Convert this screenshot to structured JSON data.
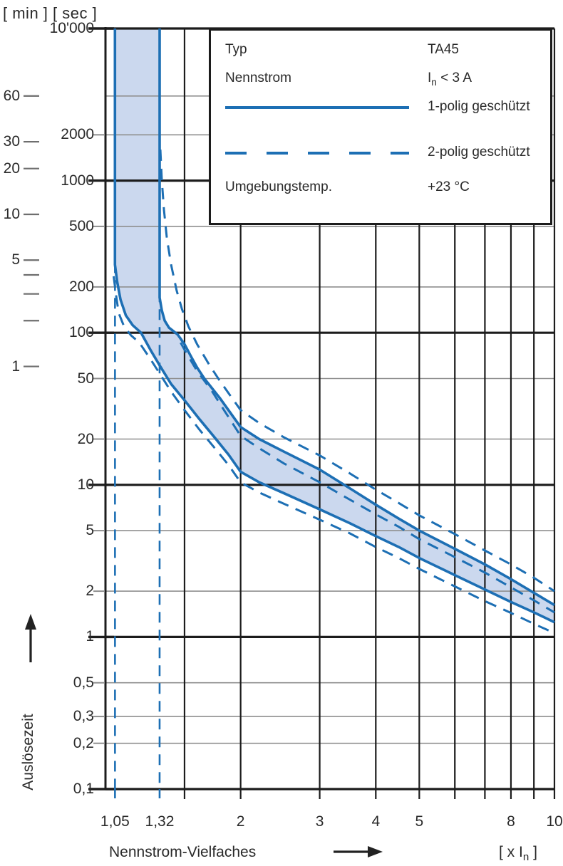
{
  "colors": {
    "curve_blue": "#1d6fb4",
    "band_fill": "#cbd8ee",
    "grid_gray": "#8f8f8f",
    "grid_black": "#1c1c1c",
    "text": "#262626"
  },
  "axes": {
    "y_unit_label": "[ min ] [ sec ]",
    "y_axis_caption": "Auslösezeit",
    "x_axis_caption": "Nennstrom-Vielfaches",
    "x_unit_prefix": "[ x I",
    "x_unit_sub": "n",
    "x_unit_suffix": " ]",
    "sec_ticks": [
      {
        "v": 10000,
        "label": "10'000",
        "major": true
      },
      {
        "v": 2000,
        "label": "2000",
        "major": false
      },
      {
        "v": 1000,
        "label": "1000",
        "major": true
      },
      {
        "v": 500,
        "label": "500",
        "major": false
      },
      {
        "v": 200,
        "label": "200",
        "major": false
      },
      {
        "v": 100,
        "label": "100",
        "major": true
      },
      {
        "v": 50,
        "label": "50",
        "major": false
      },
      {
        "v": 20,
        "label": "20",
        "major": false
      },
      {
        "v": 10,
        "label": "10",
        "major": true
      },
      {
        "v": 5,
        "label": "5",
        "major": false
      },
      {
        "v": 2,
        "label": "2",
        "major": false
      },
      {
        "v": 1,
        "label": "1",
        "major": true
      },
      {
        "v": 0.5,
        "label": "0,5",
        "major": false
      },
      {
        "v": 0.3,
        "label": "0,3",
        "major": false
      },
      {
        "v": 0.2,
        "label": "0,2",
        "major": false
      },
      {
        "v": 0.1,
        "label": "0,1",
        "major": true
      }
    ],
    "min_ticks": [
      {
        "v": 60,
        "label": "60"
      },
      {
        "v": 30,
        "label": "30"
      },
      {
        "v": 20,
        "label": "20"
      },
      {
        "v": 10,
        "label": "10"
      },
      {
        "v": 5,
        "label": "5"
      },
      {
        "v": 4,
        "label": ""
      },
      {
        "v": 3,
        "label": ""
      },
      {
        "v": 2,
        "label": ""
      },
      {
        "v": 1,
        "label": "1"
      }
    ],
    "x_ticks": [
      {
        "v": 1.05,
        "label": "1,05",
        "blue": true
      },
      {
        "v": 1.32,
        "label": "1,32",
        "blue": true
      },
      {
        "v": 1.5,
        "label": "",
        "blue": false
      },
      {
        "v": 2,
        "label": "2",
        "blue": false
      },
      {
        "v": 3,
        "label": "3",
        "blue": false
      },
      {
        "v": 4,
        "label": "4",
        "blue": false
      },
      {
        "v": 5,
        "label": "5",
        "blue": false
      },
      {
        "v": 6,
        "label": "",
        "blue": false
      },
      {
        "v": 7,
        "label": "",
        "blue": false
      },
      {
        "v": 8,
        "label": "8",
        "blue": false
      },
      {
        "v": 9,
        "label": "",
        "blue": false
      },
      {
        "v": 10,
        "label": "10",
        "blue": false
      }
    ]
  },
  "legend": {
    "typ_label": "Typ",
    "typ_value": "TA45",
    "nennstrom_label": "Nennstrom",
    "nennstrom_value_prefix": "I",
    "nennstrom_value_sub": "n",
    "nennstrom_value_suffix": " < 3 A",
    "solid_label": "1-polig geschützt",
    "dashed_label": "2-polig geschützt",
    "temp_label": "Umgebungstemp.",
    "temp_value": "+23 °C"
  },
  "chart_data": {
    "type": "line",
    "title": "",
    "xlabel": "Nennstrom-Vielfaches [ x In ]",
    "ylabel": "Auslösezeit [ min ] [ sec ]",
    "x_scale": "log",
    "y_scale": "log",
    "xlim": [
      1,
      10
    ],
    "ylim_sec": [
      0.1,
      10000
    ],
    "grid": true,
    "x_gridlines": [
      1.5,
      2,
      3,
      4,
      5,
      6,
      7,
      8,
      9,
      10
    ],
    "y_gridlines_major_sec": [
      10000,
      1000,
      100,
      10,
      1,
      0.1
    ],
    "y_gridlines_minor_sec": [
      3600,
      2000,
      500,
      200,
      50,
      20,
      5,
      2,
      0.5,
      0.3,
      0.2
    ],
    "asymptotes": [
      {
        "x": 1.05,
        "style": "dashed",
        "from_t": 290,
        "to_t": 0.1
      },
      {
        "x": 1.32,
        "style": "dashed",
        "from_t": 320,
        "to_t": 0.1
      }
    ],
    "band_fill_between": [
      "1-polig geschützt (min)",
      "1-polig geschützt (max)"
    ],
    "series": [
      {
        "name": "1-polig geschützt (min)",
        "style": "solid",
        "points": [
          [
            1.05,
            10000
          ],
          [
            1.05,
            280
          ],
          [
            1.062,
            215
          ],
          [
            1.08,
            165
          ],
          [
            1.11,
            130
          ],
          [
            1.15,
            112
          ],
          [
            1.2,
            100
          ],
          [
            1.26,
            77
          ],
          [
            1.32,
            61
          ],
          [
            1.4,
            46
          ],
          [
            1.5,
            36
          ],
          [
            1.62,
            27
          ],
          [
            1.75,
            20.5
          ],
          [
            1.88,
            15.8
          ],
          [
            2.0,
            12.2
          ],
          [
            2.2,
            10.4
          ],
          [
            2.5,
            8.8
          ],
          [
            3.0,
            6.9
          ],
          [
            3.5,
            5.6
          ],
          [
            4.0,
            4.6
          ],
          [
            4.5,
            3.9
          ],
          [
            5.0,
            3.3
          ],
          [
            6.0,
            2.55
          ],
          [
            7.0,
            2.05
          ],
          [
            8.0,
            1.7
          ],
          [
            9.0,
            1.45
          ],
          [
            10.0,
            1.25
          ]
        ]
      },
      {
        "name": "1-polig geschützt (max)",
        "style": "solid",
        "points": [
          [
            1.32,
            10000
          ],
          [
            1.32,
            170
          ],
          [
            1.335,
            140
          ],
          [
            1.355,
            120
          ],
          [
            1.385,
            108
          ],
          [
            1.42,
            102
          ],
          [
            1.449,
            97
          ],
          [
            1.5,
            84
          ],
          [
            1.55,
            70
          ],
          [
            1.6,
            59
          ],
          [
            1.66,
            50
          ],
          [
            1.8,
            37
          ],
          [
            2.0,
            24
          ],
          [
            2.2,
            20
          ],
          [
            2.5,
            16.5
          ],
          [
            3.0,
            12.6
          ],
          [
            3.5,
            9.5
          ],
          [
            4.0,
            7.4
          ],
          [
            4.5,
            6.0
          ],
          [
            5.0,
            5.0
          ],
          [
            6.0,
            3.8
          ],
          [
            7.0,
            3.0
          ],
          [
            8.0,
            2.4
          ],
          [
            9.0,
            1.95
          ],
          [
            10.0,
            1.62
          ]
        ]
      },
      {
        "name": "2-polig geschützt (max)",
        "style": "dashed",
        "points": [
          [
            1.325,
            1600
          ],
          [
            1.335,
            1000
          ],
          [
            1.35,
            640
          ],
          [
            1.37,
            420
          ],
          [
            1.4,
            280
          ],
          [
            1.44,
            190
          ],
          [
            1.48,
            143
          ],
          [
            1.53,
            110
          ],
          [
            1.6,
            84
          ],
          [
            1.7,
            62
          ],
          [
            1.8,
            48
          ],
          [
            2.0,
            31
          ],
          [
            2.2,
            25.5
          ],
          [
            2.5,
            20.5
          ],
          [
            3.0,
            15.6
          ],
          [
            3.5,
            11.9
          ],
          [
            4.0,
            9.3
          ],
          [
            4.5,
            7.6
          ],
          [
            5.0,
            6.3
          ],
          [
            6.0,
            4.75
          ],
          [
            7.0,
            3.7
          ],
          [
            8.0,
            3.0
          ],
          [
            9.0,
            2.45
          ],
          [
            10.0,
            2.0
          ]
        ]
      },
      {
        "name": "2-polig geschützt (mid)",
        "style": "dashed",
        "points": [
          [
            1.47,
            86
          ],
          [
            1.52,
            72
          ],
          [
            1.6,
            56
          ],
          [
            1.72,
            42
          ],
          [
            1.85,
            30
          ],
          [
            2.0,
            21
          ],
          [
            2.2,
            17.4
          ],
          [
            2.5,
            13.8
          ],
          [
            3.0,
            10.4
          ],
          [
            3.5,
            8.0
          ],
          [
            4.0,
            6.4
          ],
          [
            4.5,
            5.3
          ],
          [
            5.0,
            4.4
          ],
          [
            6.0,
            3.35
          ],
          [
            7.0,
            2.65
          ],
          [
            8.0,
            2.12
          ],
          [
            9.0,
            1.74
          ],
          [
            10.0,
            1.45
          ]
        ]
      },
      {
        "name": "2-polig geschützt (min)",
        "style": "dashed",
        "points": [
          [
            1.043,
            235
          ],
          [
            1.055,
            180
          ],
          [
            1.07,
            135
          ],
          [
            1.1,
            110
          ],
          [
            1.14,
            96
          ],
          [
            1.19,
            86
          ],
          [
            1.26,
            67
          ],
          [
            1.32,
            54
          ],
          [
            1.4,
            41
          ],
          [
            1.5,
            31
          ],
          [
            1.62,
            23
          ],
          [
            1.75,
            17.5
          ],
          [
            1.88,
            13.5
          ],
          [
            2.0,
            10.4
          ],
          [
            2.2,
            8.9
          ],
          [
            2.5,
            7.5
          ],
          [
            3.0,
            5.9
          ],
          [
            3.5,
            4.8
          ],
          [
            4.0,
            3.9
          ],
          [
            4.5,
            3.3
          ],
          [
            5.0,
            2.8
          ],
          [
            6.0,
            2.15
          ],
          [
            7.0,
            1.72
          ],
          [
            8.0,
            1.44
          ],
          [
            9.0,
            1.22
          ],
          [
            10.0,
            1.06
          ]
        ]
      }
    ]
  }
}
